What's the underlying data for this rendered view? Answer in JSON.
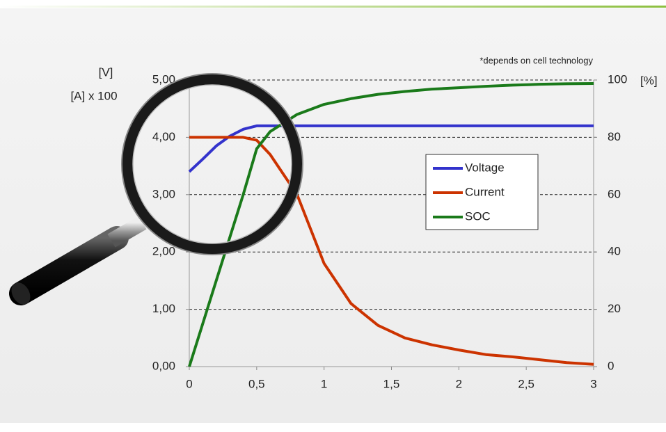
{
  "chart_data": {
    "type": "line",
    "annotation": "*depends on cell technology",
    "ylabel": [
      "[V]",
      "[A] x 100"
    ],
    "y2label": "[%]",
    "x": [
      0,
      0.1,
      0.2,
      0.3,
      0.4,
      0.5,
      0.6,
      0.8,
      1,
      1.2,
      1.4,
      1.6,
      1.8,
      2,
      2.2,
      2.4,
      2.6,
      2.8,
      3
    ],
    "series": [
      {
        "name": "Voltage",
        "color": "#3333cc",
        "values": [
          3.4,
          3.62,
          3.85,
          4.02,
          4.14,
          4.2,
          4.2,
          4.2,
          4.2,
          4.2,
          4.2,
          4.2,
          4.2,
          4.2,
          4.2,
          4.2,
          4.2,
          4.2,
          4.2
        ]
      },
      {
        "name": "Current",
        "color": "#cc3300",
        "values": [
          4,
          4,
          4,
          4,
          4,
          3.95,
          3.7,
          3.0,
          1.8,
          1.1,
          0.72,
          0.5,
          0.38,
          0.29,
          0.21,
          0.17,
          0.12,
          0.07,
          0.04
        ]
      },
      {
        "name": "SOC",
        "color": "#1a7a1a",
        "axis": "y2",
        "values": [
          0,
          15,
          30,
          45,
          60,
          76,
          82,
          88,
          91.5,
          93.5,
          95,
          96,
          96.8,
          97.3,
          97.8,
          98.2,
          98.5,
          98.7,
          98.8
        ]
      }
    ],
    "xlim": [
      0,
      3
    ],
    "xticks": [
      0,
      {
        "value": 0.5,
        "label": "0,5"
      },
      1,
      {
        "value": 1.5,
        "label": "1,5"
      },
      2,
      {
        "value": 2.5,
        "label": "2,5"
      },
      3
    ],
    "ylim": [
      0,
      5
    ],
    "yticks": [
      {
        "value": 0,
        "label": "0,00"
      },
      {
        "value": 1,
        "label": "1,00"
      },
      {
        "value": 2,
        "label": "2,00"
      },
      {
        "value": 3,
        "label": "3,00"
      },
      {
        "value": 4,
        "label": "4,00"
      },
      {
        "value": 5,
        "label": "5,00"
      }
    ],
    "y2lim": [
      0,
      100
    ],
    "y2ticks": [
      0,
      20,
      40,
      60,
      80,
      100
    ],
    "grid": true,
    "legend": "right"
  }
}
